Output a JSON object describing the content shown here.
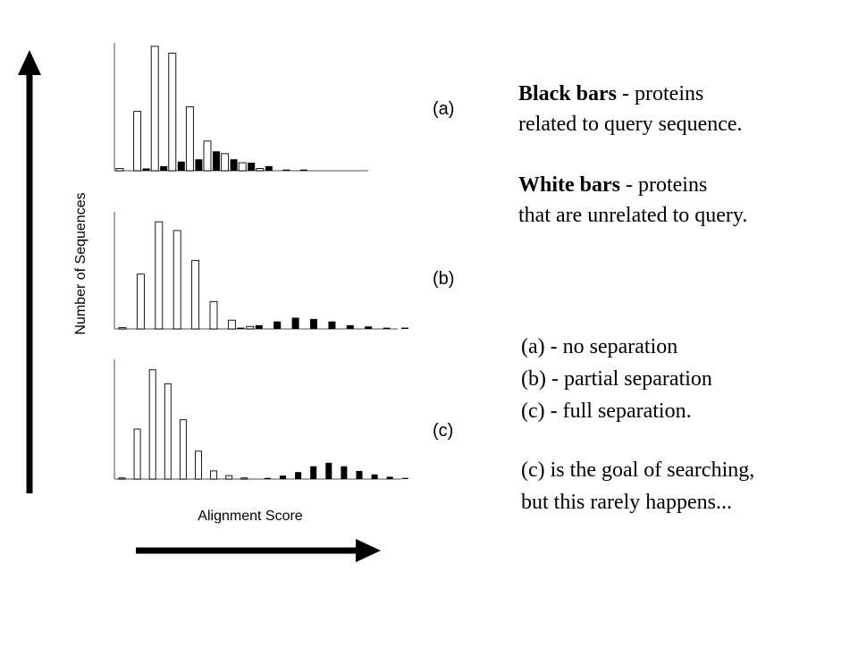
{
  "chart_data": {
    "type": "bar",
    "xlabel": "Alignment Score",
    "ylabel": "Number of Sequences",
    "panels": [
      {
        "label": "(a)",
        "series": [
          {
            "name": "White bars",
            "color": "#ffffff",
            "values": [
              0.2,
              5.2,
              10.9,
              10.3,
              5.6,
              2.6,
              1.5,
              0.7,
              0.2,
              0,
              0,
              0,
              0,
              0,
              0
            ]
          },
          {
            "name": "Black bars",
            "color": "#000000",
            "values": [
              0,
              0.2,
              0.4,
              0.8,
              1.0,
              1.7,
              1.0,
              0.7,
              0.4,
              0.1,
              0.1,
              0,
              0,
              0,
              0
            ]
          }
        ]
      },
      {
        "label": "(b)",
        "series": [
          {
            "name": "White bars",
            "color": "#ffffff",
            "values": [
              0.1,
              4.4,
              8.6,
              7.9,
              5.5,
              2.2,
              0.7,
              0.2,
              0,
              0,
              0,
              0,
              0,
              0,
              0,
              0
            ]
          },
          {
            "name": "Black bars",
            "color": "#000000",
            "values": [
              0,
              0,
              0,
              0,
              0,
              0,
              0.1,
              0.3,
              0.6,
              0.9,
              0.8,
              0.6,
              0.3,
              0.2,
              0.1,
              0.1
            ]
          }
        ]
      },
      {
        "label": "(c)",
        "series": [
          {
            "name": "White bars",
            "color": "#ffffff",
            "values": [
              0.1,
              4.3,
              9.4,
              8.2,
              5.1,
              2.4,
              0.7,
              0.3,
              0.1,
              0,
              0,
              0,
              0,
              0,
              0,
              0
            ]
          },
          {
            "name": "Black bars",
            "color": "#000000",
            "values": [
              0,
              0,
              0,
              0,
              0,
              0,
              0,
              0,
              0,
              0.1,
              0.3,
              0.6,
              1.1,
              1.4,
              1.1,
              0.7,
              0.4,
              0.2,
              0.1
            ]
          }
        ]
      }
    ],
    "grid": false,
    "legend": "right"
  },
  "legend": {
    "black_bold": "Black bars",
    "black_rest_1": " - proteins",
    "black_rest_2": "related to query sequence.",
    "white_bold": "White bars",
    "white_rest_1": " - proteins",
    "white_rest_2": "that are unrelated to query."
  },
  "notes": {
    "line_a": "(a) - no separation",
    "line_b": "(b) - partial separation",
    "line_c": "(c) - full separation.",
    "goal_1": "(c) is the goal of searching,",
    "goal_2": "but this rarely happens..."
  }
}
